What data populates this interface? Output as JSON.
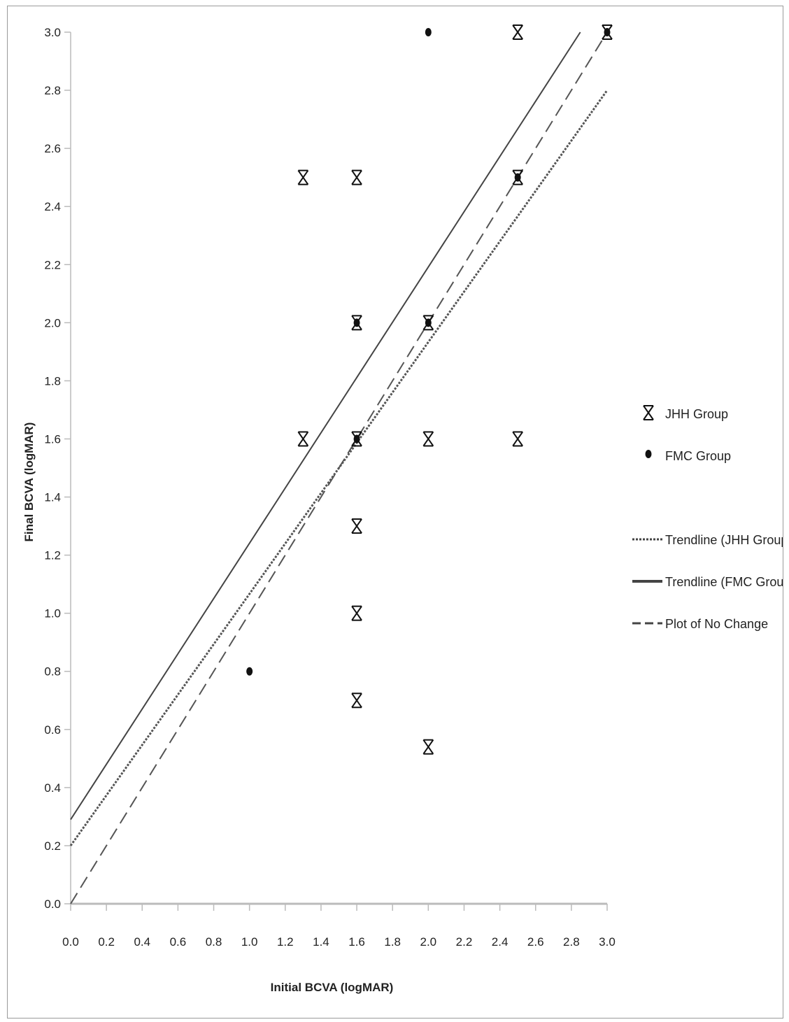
{
  "chart_data": {
    "type": "scatter",
    "title": "",
    "xlabel": "Initial BCVA (logMAR)",
    "ylabel": "Final BCVA (logMAR)",
    "xlim": [
      0,
      3.0
    ],
    "ylim": [
      0,
      3.0
    ],
    "xticks": [
      "0.0",
      "0.2",
      "0.4",
      "0.6",
      "0.8",
      "1.0",
      "1.2",
      "1.4",
      "1.6",
      "1.8",
      "2.0",
      "2.2",
      "2.4",
      "2.6",
      "2.8",
      "3.0"
    ],
    "yticks": [
      "0.0",
      "0.2",
      "0.4",
      "0.6",
      "0.8",
      "1.0",
      "1.2",
      "1.4",
      "1.6",
      "1.8",
      "2.0",
      "2.2",
      "2.4",
      "2.6",
      "2.8",
      "3.0"
    ],
    "grid": false,
    "legend_position": "right",
    "series": [
      {
        "name": "JHH Group",
        "marker": "asterisk",
        "points": [
          [
            1.3,
            2.5
          ],
          [
            1.6,
            2.5
          ],
          [
            1.6,
            2.0
          ],
          [
            1.3,
            1.6
          ],
          [
            1.6,
            1.6
          ],
          [
            1.6,
            1.3
          ],
          [
            1.6,
            1.0
          ],
          [
            1.6,
            0.7
          ],
          [
            2.0,
            2.0
          ],
          [
            2.0,
            1.6
          ],
          [
            2.0,
            0.54
          ],
          [
            2.5,
            3.0
          ],
          [
            2.5,
            2.5
          ],
          [
            2.5,
            1.6
          ],
          [
            3.0,
            3.0
          ]
        ]
      },
      {
        "name": "FMC Group",
        "marker": "dot",
        "points": [
          [
            1.0,
            0.8
          ],
          [
            2.0,
            3.0
          ],
          [
            2.0,
            2.0
          ],
          [
            1.6,
            1.6
          ],
          [
            1.6,
            2.0
          ],
          [
            2.5,
            2.5
          ],
          [
            3.0,
            3.0
          ]
        ]
      }
    ],
    "lines": [
      {
        "name": "Trendline (JHH Group)",
        "style": "dotted",
        "x": [
          0,
          3.0
        ],
        "y": [
          0.2,
          2.8
        ]
      },
      {
        "name": "Trendline (FMC Group)",
        "style": "solid",
        "x": [
          0,
          2.85
        ],
        "y": [
          0.29,
          3.0
        ]
      },
      {
        "name": "Plot of No Change",
        "style": "dashed",
        "x": [
          0,
          3.0
        ],
        "y": [
          0,
          3.0
        ]
      }
    ],
    "colors": {
      "marker": "#111111",
      "line": "#555555",
      "axis": "#bbbbbb"
    }
  }
}
